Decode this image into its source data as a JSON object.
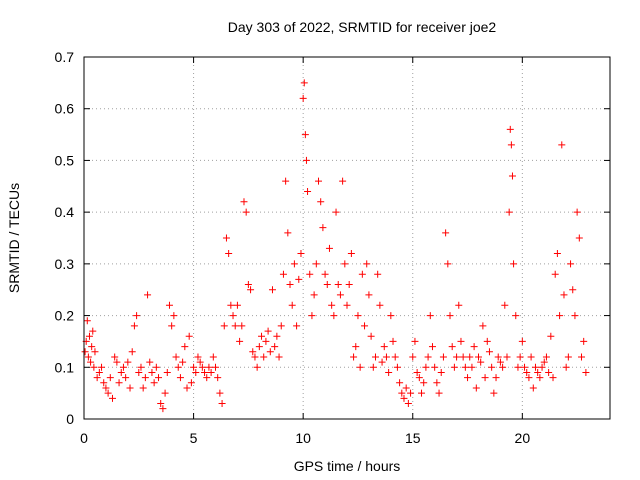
{
  "chart_data": {
    "type": "scatter",
    "title": "Day 303 of 2022, SRMTID for receiver joe2",
    "xlabel": "GPS time / hours",
    "ylabel": "SRMTID / TECUs",
    "xlim": [
      0,
      24
    ],
    "ylim": [
      0,
      0.7
    ],
    "xticks": [
      0,
      5,
      10,
      15,
      20
    ],
    "xtick_labels": [
      "0",
      "5",
      "10",
      "15",
      "20"
    ],
    "yticks": [
      0,
      0.1,
      0.2,
      0.3,
      0.4,
      0.5,
      0.6,
      0.7
    ],
    "ytick_labels": [
      "0",
      "0.1",
      "0.2",
      "0.3",
      "0.4",
      "0.5",
      "0.6",
      "0.7"
    ],
    "grid": true,
    "marker": "+",
    "series": [
      {
        "name": "SRMTID",
        "color": "#ff0000",
        "points": [
          [
            0.05,
            0.13
          ],
          [
            0.1,
            0.15
          ],
          [
            0.15,
            0.19
          ],
          [
            0.2,
            0.12
          ],
          [
            0.25,
            0.16
          ],
          [
            0.3,
            0.11
          ],
          [
            0.35,
            0.14
          ],
          [
            0.4,
            0.17
          ],
          [
            0.45,
            0.1
          ],
          [
            0.5,
            0.13
          ],
          [
            0.6,
            0.08
          ],
          [
            0.7,
            0.09
          ],
          [
            0.8,
            0.1
          ],
          [
            0.9,
            0.07
          ],
          [
            1.0,
            0.06
          ],
          [
            1.1,
            0.05
          ],
          [
            1.2,
            0.08
          ],
          [
            1.3,
            0.04
          ],
          [
            1.4,
            0.12
          ],
          [
            1.5,
            0.11
          ],
          [
            1.6,
            0.07
          ],
          [
            1.7,
            0.09
          ],
          [
            1.8,
            0.1
          ],
          [
            1.9,
            0.08
          ],
          [
            2.0,
            0.11
          ],
          [
            2.1,
            0.06
          ],
          [
            2.2,
            0.13
          ],
          [
            2.3,
            0.18
          ],
          [
            2.4,
            0.2
          ],
          [
            2.5,
            0.09
          ],
          [
            2.6,
            0.1
          ],
          [
            2.7,
            0.06
          ],
          [
            2.8,
            0.08
          ],
          [
            2.9,
            0.24
          ],
          [
            3.0,
            0.11
          ],
          [
            3.1,
            0.09
          ],
          [
            3.2,
            0.07
          ],
          [
            3.3,
            0.1
          ],
          [
            3.4,
            0.08
          ],
          [
            3.5,
            0.03
          ],
          [
            3.6,
            0.02
          ],
          [
            3.7,
            0.05
          ],
          [
            3.8,
            0.09
          ],
          [
            3.9,
            0.22
          ],
          [
            4.0,
            0.18
          ],
          [
            4.1,
            0.2
          ],
          [
            4.2,
            0.12
          ],
          [
            4.3,
            0.1
          ],
          [
            4.4,
            0.08
          ],
          [
            4.5,
            0.11
          ],
          [
            4.6,
            0.14
          ],
          [
            4.7,
            0.06
          ],
          [
            4.8,
            0.16
          ],
          [
            4.9,
            0.07
          ],
          [
            5.0,
            0.1
          ],
          [
            5.1,
            0.09
          ],
          [
            5.2,
            0.12
          ],
          [
            5.3,
            0.11
          ],
          [
            5.4,
            0.1
          ],
          [
            5.5,
            0.09
          ],
          [
            5.6,
            0.08
          ],
          [
            5.7,
            0.1
          ],
          [
            5.8,
            0.09
          ],
          [
            5.9,
            0.12
          ],
          [
            6.0,
            0.1
          ],
          [
            6.1,
            0.08
          ],
          [
            6.2,
            0.05
          ],
          [
            6.3,
            0.03
          ],
          [
            6.4,
            0.18
          ],
          [
            6.5,
            0.35
          ],
          [
            6.6,
            0.32
          ],
          [
            6.7,
            0.22
          ],
          [
            6.8,
            0.2
          ],
          [
            6.9,
            0.18
          ],
          [
            7.0,
            0.22
          ],
          [
            7.1,
            0.15
          ],
          [
            7.2,
            0.18
          ],
          [
            7.3,
            0.42
          ],
          [
            7.4,
            0.4
          ],
          [
            7.5,
            0.26
          ],
          [
            7.6,
            0.25
          ],
          [
            7.7,
            0.13
          ],
          [
            7.8,
            0.12
          ],
          [
            7.9,
            0.1
          ],
          [
            8.0,
            0.14
          ],
          [
            8.1,
            0.16
          ],
          [
            8.2,
            0.12
          ],
          [
            8.3,
            0.15
          ],
          [
            8.4,
            0.17
          ],
          [
            8.5,
            0.13
          ],
          [
            8.6,
            0.25
          ],
          [
            8.7,
            0.14
          ],
          [
            8.8,
            0.16
          ],
          [
            8.9,
            0.12
          ],
          [
            9.0,
            0.18
          ],
          [
            9.1,
            0.28
          ],
          [
            9.2,
            0.46
          ],
          [
            9.3,
            0.36
          ],
          [
            9.4,
            0.26
          ],
          [
            9.5,
            0.22
          ],
          [
            9.6,
            0.3
          ],
          [
            9.7,
            0.18
          ],
          [
            9.8,
            0.27
          ],
          [
            9.9,
            0.32
          ],
          [
            10.0,
            0.62
          ],
          [
            10.05,
            0.65
          ],
          [
            10.1,
            0.55
          ],
          [
            10.15,
            0.5
          ],
          [
            10.2,
            0.44
          ],
          [
            10.3,
            0.28
          ],
          [
            10.4,
            0.2
          ],
          [
            10.5,
            0.24
          ],
          [
            10.6,
            0.3
          ],
          [
            10.7,
            0.46
          ],
          [
            10.8,
            0.42
          ],
          [
            10.9,
            0.37
          ],
          [
            11.0,
            0.28
          ],
          [
            11.1,
            0.26
          ],
          [
            11.2,
            0.33
          ],
          [
            11.3,
            0.22
          ],
          [
            11.4,
            0.2
          ],
          [
            11.5,
            0.4
          ],
          [
            11.6,
            0.26
          ],
          [
            11.7,
            0.24
          ],
          [
            11.8,
            0.46
          ],
          [
            11.9,
            0.3
          ],
          [
            12.0,
            0.22
          ],
          [
            12.1,
            0.26
          ],
          [
            12.2,
            0.32
          ],
          [
            12.3,
            0.12
          ],
          [
            12.4,
            0.14
          ],
          [
            12.5,
            0.2
          ],
          [
            12.6,
            0.1
          ],
          [
            12.7,
            0.28
          ],
          [
            12.8,
            0.18
          ],
          [
            12.9,
            0.3
          ],
          [
            13.0,
            0.24
          ],
          [
            13.1,
            0.16
          ],
          [
            13.2,
            0.1
          ],
          [
            13.3,
            0.12
          ],
          [
            13.4,
            0.28
          ],
          [
            13.5,
            0.22
          ],
          [
            13.6,
            0.11
          ],
          [
            13.7,
            0.14
          ],
          [
            13.8,
            0.12
          ],
          [
            13.9,
            0.09
          ],
          [
            14.0,
            0.2
          ],
          [
            14.1,
            0.15
          ],
          [
            14.2,
            0.12
          ],
          [
            14.3,
            0.1
          ],
          [
            14.4,
            0.07
          ],
          [
            14.5,
            0.05
          ],
          [
            14.6,
            0.04
          ],
          [
            14.7,
            0.06
          ],
          [
            14.8,
            0.03
          ],
          [
            14.9,
            0.05
          ],
          [
            15.0,
            0.12
          ],
          [
            15.1,
            0.15
          ],
          [
            15.2,
            0.09
          ],
          [
            15.3,
            0.08
          ],
          [
            15.4,
            0.05
          ],
          [
            15.5,
            0.07
          ],
          [
            15.6,
            0.1
          ],
          [
            15.7,
            0.12
          ],
          [
            15.8,
            0.2
          ],
          [
            15.9,
            0.14
          ],
          [
            16.0,
            0.1
          ],
          [
            16.1,
            0.07
          ],
          [
            16.2,
            0.05
          ],
          [
            16.3,
            0.09
          ],
          [
            16.4,
            0.12
          ],
          [
            16.5,
            0.36
          ],
          [
            16.6,
            0.3
          ],
          [
            16.7,
            0.2
          ],
          [
            16.8,
            0.14
          ],
          [
            16.9,
            0.1
          ],
          [
            17.0,
            0.12
          ],
          [
            17.1,
            0.22
          ],
          [
            17.2,
            0.15
          ],
          [
            17.3,
            0.12
          ],
          [
            17.4,
            0.1
          ],
          [
            17.5,
            0.08
          ],
          [
            17.6,
            0.12
          ],
          [
            17.7,
            0.1
          ],
          [
            17.8,
            0.14
          ],
          [
            17.9,
            0.06
          ],
          [
            18.0,
            0.12
          ],
          [
            18.1,
            0.11
          ],
          [
            18.2,
            0.18
          ],
          [
            18.3,
            0.08
          ],
          [
            18.4,
            0.15
          ],
          [
            18.5,
            0.13
          ],
          [
            18.6,
            0.1
          ],
          [
            18.7,
            0.05
          ],
          [
            18.8,
            0.08
          ],
          [
            18.9,
            0.12
          ],
          [
            19.0,
            0.11
          ],
          [
            19.1,
            0.1
          ],
          [
            19.2,
            0.22
          ],
          [
            19.3,
            0.12
          ],
          [
            19.4,
            0.4
          ],
          [
            19.45,
            0.56
          ],
          [
            19.5,
            0.53
          ],
          [
            19.55,
            0.47
          ],
          [
            19.6,
            0.3
          ],
          [
            19.7,
            0.2
          ],
          [
            19.8,
            0.1
          ],
          [
            19.9,
            0.12
          ],
          [
            20.0,
            0.15
          ],
          [
            20.1,
            0.1
          ],
          [
            20.2,
            0.09
          ],
          [
            20.3,
            0.08
          ],
          [
            20.4,
            0.12
          ],
          [
            20.5,
            0.06
          ],
          [
            20.6,
            0.1
          ],
          [
            20.7,
            0.09
          ],
          [
            20.8,
            0.08
          ],
          [
            20.9,
            0.1
          ],
          [
            21.0,
            0.11
          ],
          [
            21.1,
            0.12
          ],
          [
            21.2,
            0.09
          ],
          [
            21.3,
            0.16
          ],
          [
            21.4,
            0.08
          ],
          [
            21.5,
            0.28
          ],
          [
            21.6,
            0.32
          ],
          [
            21.7,
            0.2
          ],
          [
            21.8,
            0.53
          ],
          [
            21.9,
            0.24
          ],
          [
            22.0,
            0.1
          ],
          [
            22.1,
            0.12
          ],
          [
            22.2,
            0.3
          ],
          [
            22.3,
            0.25
          ],
          [
            22.4,
            0.2
          ],
          [
            22.5,
            0.4
          ],
          [
            22.6,
            0.35
          ],
          [
            22.7,
            0.12
          ],
          [
            22.8,
            0.15
          ],
          [
            22.9,
            0.09
          ]
        ]
      }
    ]
  }
}
